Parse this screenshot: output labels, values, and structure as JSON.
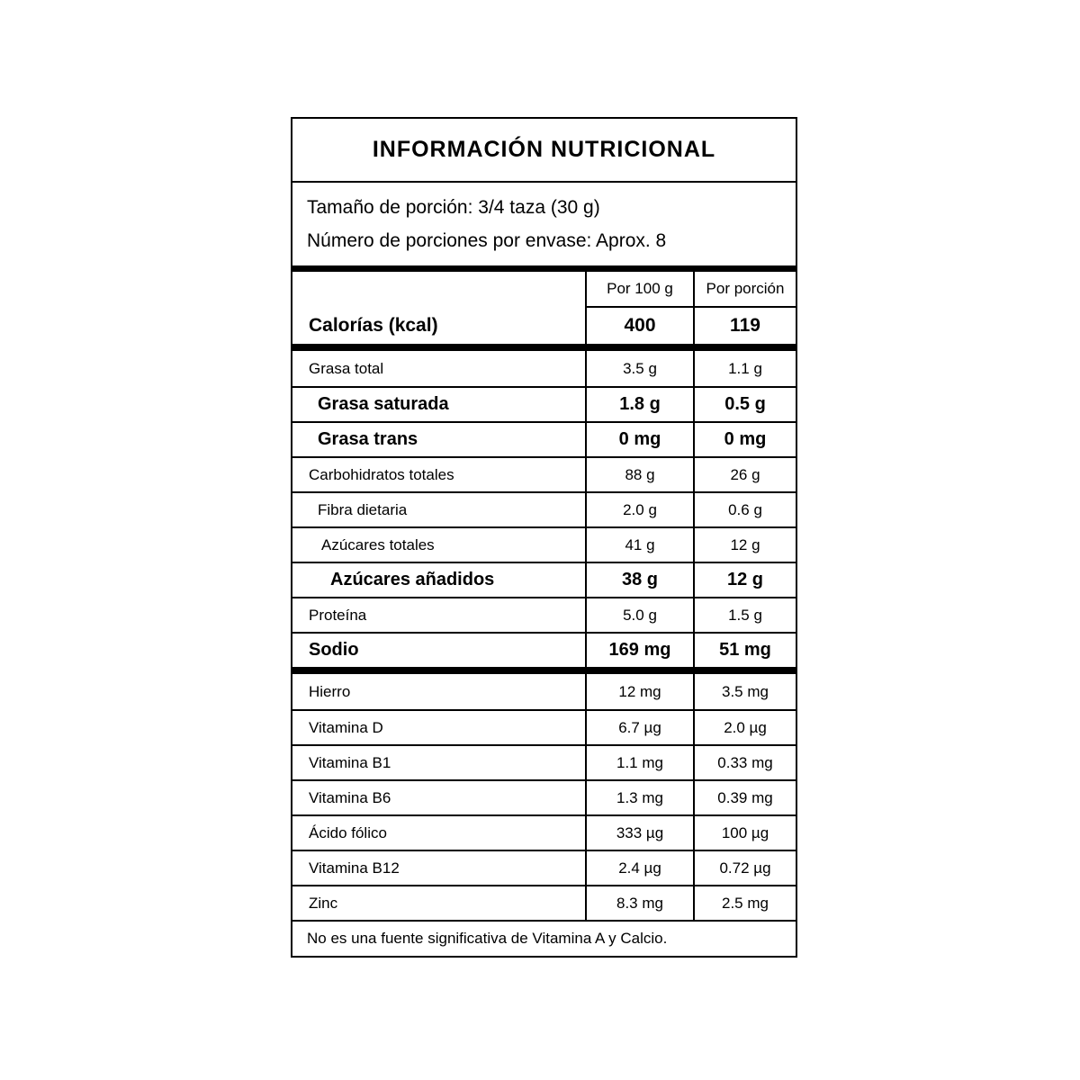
{
  "label": {
    "title": "INFORMACIÓN NUTRICIONAL",
    "serving": {
      "size_line": "Tamaño de porción: 3/4 taza (30 g)",
      "count_line": "Número de porciones por envase: Aprox. 8"
    },
    "columns": {
      "per100": "Por 100 g",
      "portion": "Por porción"
    },
    "calories": {
      "label": "Calorías (kcal)",
      "per100": "400",
      "portion": "119"
    },
    "rows": [
      {
        "label": "Grasa total",
        "per100": "3.5 g",
        "portion": "1.1 g"
      },
      {
        "label": "Grasa saturada",
        "per100": "1.8 g",
        "portion": "0.5 g"
      },
      {
        "label": "Grasa trans",
        "per100": "0 mg",
        "portion": "0 mg"
      },
      {
        "label": "Carbohidratos totales",
        "per100": "88 g",
        "portion": "26 g"
      },
      {
        "label": "Fibra dietaria",
        "per100": "2.0 g",
        "portion": "0.6 g"
      },
      {
        "label": "Azúcares totales",
        "per100": "41 g",
        "portion": "12 g"
      },
      {
        "label": "Azúcares añadidos",
        "per100": "38 g",
        "portion": "12 g"
      },
      {
        "label": "Proteína",
        "per100": "5.0 g",
        "portion": "1.5 g"
      },
      {
        "label": "Sodio",
        "per100": "169 mg",
        "portion": "51 mg"
      }
    ],
    "micronutrients": [
      {
        "label": "Hierro",
        "per100": "12 mg",
        "portion": "3.5 mg"
      },
      {
        "label": "Vitamina D",
        "per100": "6.7 µg",
        "portion": "2.0 µg"
      },
      {
        "label": "Vitamina B1",
        "per100": "1.1 mg",
        "portion": "0.33 mg"
      },
      {
        "label": "Vitamina B6",
        "per100": "1.3 mg",
        "portion": "0.39 mg"
      },
      {
        "label": "Ácido fólico",
        "per100": "333 µg",
        "portion": "100 µg"
      },
      {
        "label": "Vitamina B12",
        "per100": "2.4 µg",
        "portion": "0.72 µg"
      },
      {
        "label": "Zinc",
        "per100": "8.3 mg",
        "portion": "2.5 mg"
      }
    ],
    "footnote": "No es una fuente significativa de Vitamina A y Calcio."
  },
  "colors": {
    "text": "#000000",
    "background": "#ffffff",
    "border": "#000000"
  }
}
